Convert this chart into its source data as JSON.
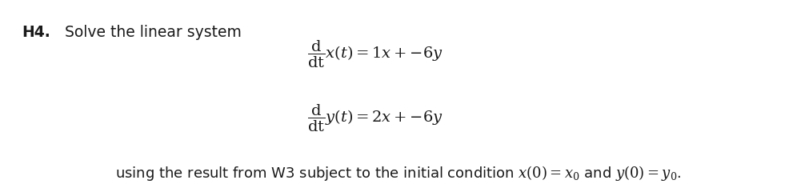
{
  "title_bold": "H4.",
  "title_normal": "Solve the linear system",
  "eq1": "$\\dfrac{\\mathrm{d}}{\\mathrm{dt}}x(t) = 1x + {-6y}$",
  "eq2": "$\\dfrac{\\mathrm{d}}{\\mathrm{dt}}y(t) = 2x + {-6y}$",
  "bottom_text": "using the result from W3 subject to the initial condition $x(0) = x_0$ and $y(0) = y_0$.",
  "bg_color": "#ffffff",
  "text_color": "#1a1a1a",
  "font_size_title": 13.5,
  "font_size_eq": 14,
  "font_size_bottom": 13
}
